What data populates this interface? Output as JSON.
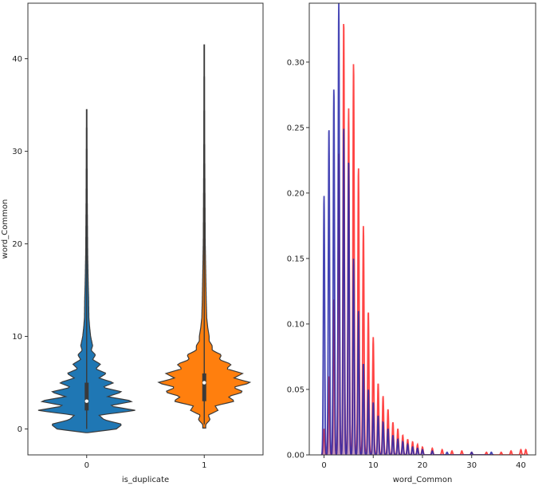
{
  "chart_data": [
    {
      "type": "violin",
      "xlabel": "is_duplicate",
      "ylabel": "word_Common",
      "ylim": [
        -2.8,
        46
      ],
      "yticks": [
        0,
        10,
        20,
        30,
        40
      ],
      "categories": [
        "0",
        "1"
      ],
      "series": [
        {
          "category": "0",
          "color": "#1f77b4",
          "min": 0,
          "max": 34.5,
          "q1": 2,
          "median": 3,
          "q3": 5,
          "density_profile": [
            [
              -0.4,
              0.02
            ],
            [
              0,
              0.6
            ],
            [
              0.5,
              0.72
            ],
            [
              1,
              0.35
            ],
            [
              1.5,
              0.25
            ],
            [
              2,
              1.0
            ],
            [
              2.5,
              0.45
            ],
            [
              3,
              0.95
            ],
            [
              3.5,
              0.42
            ],
            [
              4,
              0.72
            ],
            [
              4.5,
              0.32
            ],
            [
              5,
              0.55
            ],
            [
              5.5,
              0.25
            ],
            [
              6,
              0.4
            ],
            [
              6.5,
              0.18
            ],
            [
              7,
              0.28
            ],
            [
              7.5,
              0.12
            ],
            [
              8,
              0.18
            ],
            [
              8.5,
              0.09
            ],
            [
              9,
              0.12
            ],
            [
              10,
              0.08
            ],
            [
              11,
              0.06
            ],
            [
              12,
              0.045
            ],
            [
              14,
              0.04
            ],
            [
              16,
              0.03
            ],
            [
              19,
              0.02
            ],
            [
              25,
              0.012
            ],
            [
              34.5,
              0.005
            ]
          ]
        },
        {
          "category": "1",
          "color": "#ff7f0e",
          "min": 0.5,
          "max": 41.5,
          "q1": 3,
          "median": 5,
          "q3": 6,
          "density_profile": [
            [
              0.5,
              0.03
            ],
            [
              1,
              0.12
            ],
            [
              1.5,
              0.08
            ],
            [
              2,
              0.28
            ],
            [
              2.5,
              0.22
            ],
            [
              3,
              0.62
            ],
            [
              3.5,
              0.48
            ],
            [
              4,
              0.8
            ],
            [
              4.5,
              0.58
            ],
            [
              5,
              0.95
            ],
            [
              5.5,
              0.6
            ],
            [
              6,
              0.78
            ],
            [
              6.5,
              0.45
            ],
            [
              7,
              0.55
            ],
            [
              7.5,
              0.3
            ],
            [
              8,
              0.35
            ],
            [
              8.5,
              0.16
            ],
            [
              9,
              0.16
            ],
            [
              9.5,
              0.1
            ],
            [
              10,
              0.1
            ],
            [
              11,
              0.07
            ],
            [
              12,
              0.05
            ],
            [
              14,
              0.04
            ],
            [
              17,
              0.03
            ],
            [
              20,
              0.02
            ],
            [
              30,
              0.01
            ],
            [
              41.5,
              0.005
            ]
          ]
        }
      ]
    },
    {
      "type": "line",
      "xlabel": "word_Common",
      "ylabel": "",
      "xlim": [
        -3,
        43
      ],
      "ylim": [
        0,
        0.345
      ],
      "xticks": [
        0,
        10,
        20,
        30,
        40
      ],
      "yticks": [
        0.0,
        0.05,
        0.1,
        0.15,
        0.2,
        0.25,
        0.3
      ],
      "series": [
        {
          "color": "#ff2a2a",
          "peaks": [
            [
              0,
              0.02
            ],
            [
              1,
              0.06
            ],
            [
              2,
              0.12
            ],
            [
              3,
              0.23
            ],
            [
              4,
              0.333
            ],
            [
              5,
              0.265
            ],
            [
              6,
              0.3
            ],
            [
              7,
              0.22
            ],
            [
              8,
              0.175
            ],
            [
              9,
              0.11
            ],
            [
              10,
              0.09
            ],
            [
              11,
              0.055
            ],
            [
              12,
              0.045
            ],
            [
              13,
              0.035
            ],
            [
              14,
              0.025
            ],
            [
              15,
              0.02
            ],
            [
              16,
              0.015
            ],
            [
              17,
              0.012
            ],
            [
              18,
              0.01
            ],
            [
              19,
              0.008
            ],
            [
              20,
              0.006
            ],
            [
              22,
              0.005
            ],
            [
              24,
              0.004
            ],
            [
              26,
              0.003
            ],
            [
              28,
              0.003
            ],
            [
              30,
              0.002
            ],
            [
              33,
              0.002
            ],
            [
              36,
              0.002
            ],
            [
              38,
              0.003
            ],
            [
              40,
              0.004
            ],
            [
              41,
              0.004
            ]
          ]
        },
        {
          "color": "#2a2aaa",
          "peaks": [
            [
              0,
              0.198
            ],
            [
              1,
              0.25
            ],
            [
              2,
              0.28
            ],
            [
              3,
              0.345
            ],
            [
              4,
              0.25
            ],
            [
              5,
              0.225
            ],
            [
              6,
              0.15
            ],
            [
              7,
              0.11
            ],
            [
              8,
              0.07
            ],
            [
              9,
              0.05
            ],
            [
              10,
              0.04
            ],
            [
              11,
              0.03
            ],
            [
              12,
              0.025
            ],
            [
              13,
              0.02
            ],
            [
              14,
              0.015
            ],
            [
              15,
              0.012
            ],
            [
              16,
              0.01
            ],
            [
              17,
              0.008
            ],
            [
              18,
              0.006
            ],
            [
              19,
              0.005
            ],
            [
              20,
              0.004
            ],
            [
              22,
              0.003
            ],
            [
              25,
              0.002
            ],
            [
              30,
              0.002
            ],
            [
              34,
              0.002
            ]
          ]
        }
      ]
    }
  ]
}
